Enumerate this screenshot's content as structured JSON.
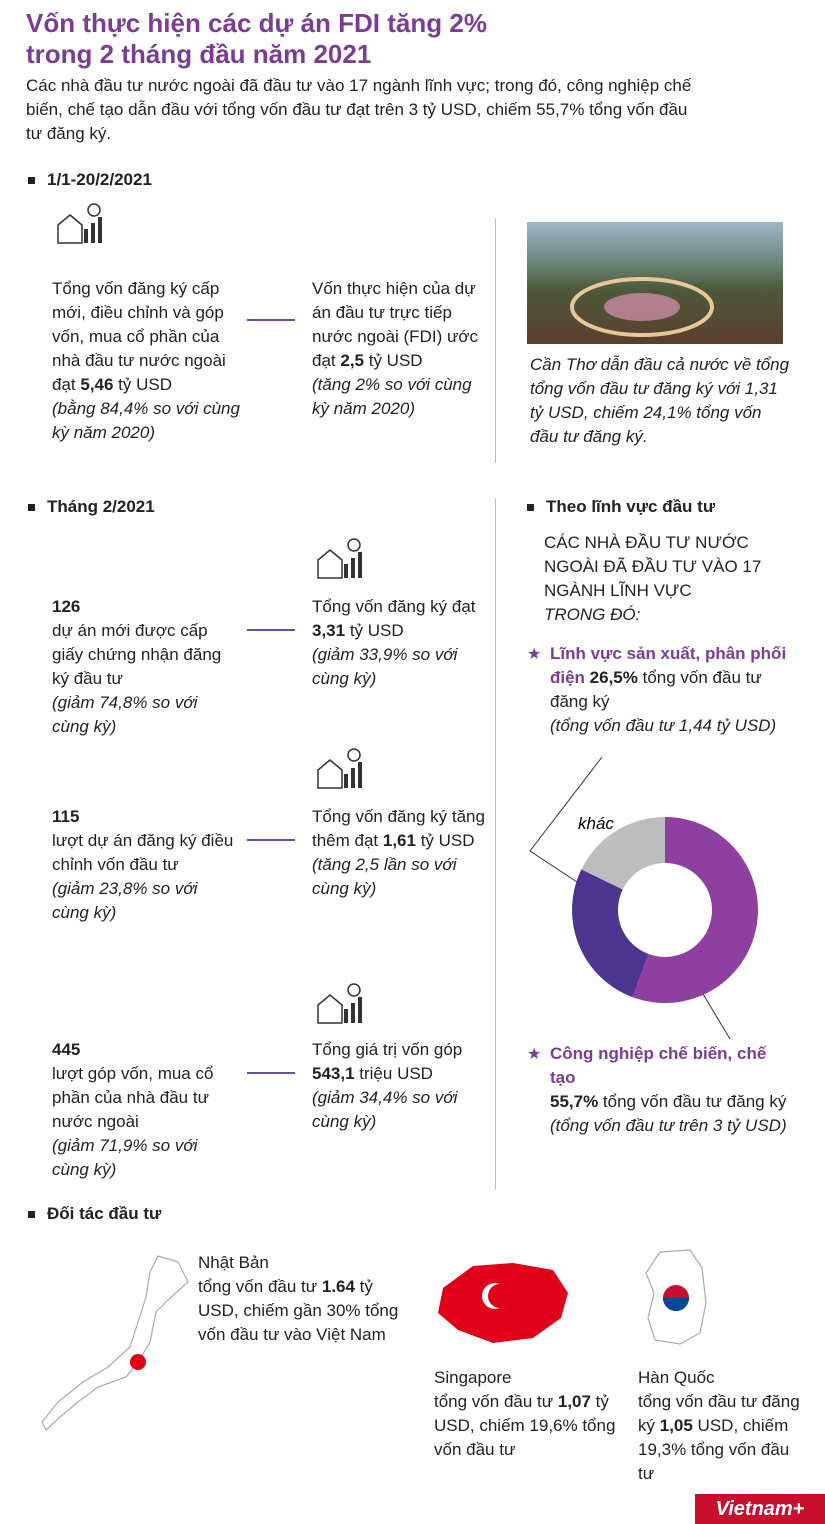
{
  "header": {
    "title": [
      "Vốn thực hiện các dự án FDI tăng 2%",
      "trong 2 tháng đầu năm 2021"
    ],
    "intro": "Các nhà đầu tư nước ngoài đã đầu tư vào 17 ngành lĩnh vực; trong đó, công nghiệp chế biến, chế tạo dẫn đầu với tổng vốn đầu tư đạt trên 3 tỷ USD, chiếm 55,7% tổng vốn đầu tư đăng ký."
  },
  "period": {
    "heading": "1/1-20/2/2021",
    "left": [
      [
        {
          "t": "Tổng vốn đăng ký cấp mới, điều chỉnh và góp vốn, mua cổ phần của nhà đầu tư nước ngoài đạt "
        },
        {
          "t": "5,46",
          "s": "b"
        },
        {
          "t": " tỷ USD"
        }
      ],
      [
        {
          "t": "(bằng 84,4% so với cùng kỳ năm 2020)",
          "s": "i"
        }
      ]
    ],
    "right": [
      [
        {
          "t": "Vốn thực hiện của dự án đầu tư trực tiếp nước ngoài (FDI) ước đạt "
        },
        {
          "t": "2,5",
          "s": "b"
        },
        {
          "t": " tỷ USD"
        }
      ],
      [
        {
          "t": "(tăng 2% so với cùng kỳ năm 2020)",
          "s": "i"
        }
      ]
    ],
    "caption": [
      [
        {
          "t": "Cần Thơ dẫn đầu cả nước về tổng tổng vốn đầu tư đăng ký với 1,31 tỷ USD, chiếm 24,1% tổng vốn đầu tư đăng ký.",
          "s": "i"
        }
      ]
    ]
  },
  "month": {
    "heading": "Tháng 2/2021",
    "rows": [
      {
        "left": [
          [
            {
              "t": "126",
              "s": "b"
            }
          ],
          [
            {
              "t": "dự án mới được cấp giấy chứng nhận đăng ký đầu tư"
            }
          ],
          [
            {
              "t": "(giảm 74,8% so với cùng kỳ)",
              "s": "i"
            }
          ]
        ],
        "right": [
          [
            {
              "t": "Tổng vốn đăng ký đạt "
            },
            {
              "t": "3,31",
              "s": "b"
            },
            {
              "t": " tỷ USD"
            }
          ],
          [
            {
              "t": "(giảm 33,9% so với cùng kỳ)",
              "s": "i"
            }
          ]
        ]
      },
      {
        "left": [
          [
            {
              "t": "115",
              "s": "b"
            }
          ],
          [
            {
              "t": "lượt dự án đăng ký điều chỉnh vốn đầu tư"
            }
          ],
          [
            {
              "t": "(giảm 23,8% so với cùng kỳ)",
              "s": "i"
            }
          ]
        ],
        "right": [
          [
            {
              "t": "Tổng vốn đăng ký tăng thêm đạt "
            },
            {
              "t": "1,61",
              "s": "b"
            },
            {
              "t": " tỷ USD"
            }
          ],
          [
            {
              "t": "(tăng 2,5 lần so với cùng kỳ)",
              "s": "i"
            }
          ]
        ]
      },
      {
        "left": [
          [
            {
              "t": "445",
              "s": "b"
            }
          ],
          [
            {
              "t": "lượt góp vốn, mua cổ phần của nhà đầu tư nước ngoài"
            }
          ],
          [
            {
              "t": "(giảm 71,9% so với cùng kỳ)",
              "s": "i"
            }
          ]
        ],
        "right": [
          [
            {
              "t": "Tổng giá trị vốn góp "
            },
            {
              "t": "543,1",
              "s": "b"
            },
            {
              "t": " triệu USD"
            }
          ],
          [
            {
              "t": "(giảm 34,4% so với cùng kỳ)",
              "s": "i"
            }
          ]
        ]
      }
    ]
  },
  "sector": {
    "heading": "Theo lĩnh vực đầu tư",
    "intro": [
      [
        {
          "t": "CÁC NHÀ ĐẦU TƯ NƯỚC NGOÀI ĐÃ ĐẦU TƯ VÀO 17 NGÀNH LĨNH VỰC"
        }
      ],
      [
        {
          "t": "TRONG ĐÓ:",
          "s": "i"
        }
      ]
    ],
    "top": [
      [
        {
          "t": "Lĩnh vực sản xuất, phân phối điện",
          "s": "p"
        },
        {
          "t": " 26,5%",
          "s": "b"
        },
        {
          "t": " tổng vốn đầu tư đăng ký"
        }
      ],
      [
        {
          "t": "(tổng vốn đầu tư 1,44 tỷ USD)",
          "s": "i"
        }
      ]
    ],
    "bottom": [
      [
        {
          "t": "Công nghiệp chế biến, chế tạo",
          "s": "p"
        }
      ],
      [
        {
          "t": "55,7%",
          "s": "b"
        },
        {
          "t": " tổng vốn đầu tư đăng ký"
        }
      ],
      [
        {
          "t": "(tổng vốn đầu tư trên 3 tỷ USD)",
          "s": "i"
        }
      ]
    ]
  },
  "chart_data": {
    "type": "donut",
    "categories": [
      null,
      null,
      "khác"
    ],
    "values": [
      55.7,
      26.5,
      17.8
    ],
    "colors": [
      "#8e3fa0",
      "#4b3591",
      "#bdbdbd"
    ]
  },
  "partners": {
    "heading": "Đối tác đầu tư",
    "japan": {
      "name": "Nhật Bản",
      "body": [
        [
          {
            "t": "tổng vốn đầu tư "
          },
          {
            "t": "1.64",
            "s": "b"
          },
          {
            "t": " tỷ USD, chiếm gần 30% tổng vốn đầu tư vào Việt Nam"
          }
        ]
      ]
    },
    "singapore": {
      "name": "Singapore",
      "body": [
        [
          {
            "t": "tổng vốn đầu tư "
          },
          {
            "t": "1,07",
            "s": "b"
          },
          {
            "t": " tỷ USD, chiếm 19,6% tổng vốn đầu tư"
          }
        ]
      ]
    },
    "korea": {
      "name": "Hàn Quốc",
      "body": [
        [
          {
            "t": "tổng vốn đầu tư đăng ký "
          },
          {
            "t": "1,05",
            "s": "b"
          },
          {
            "t": " USD, chiếm 19,3% tổng vốn đầu tư"
          }
        ]
      ]
    }
  },
  "footer": {
    "logo": "Vietnam+"
  }
}
